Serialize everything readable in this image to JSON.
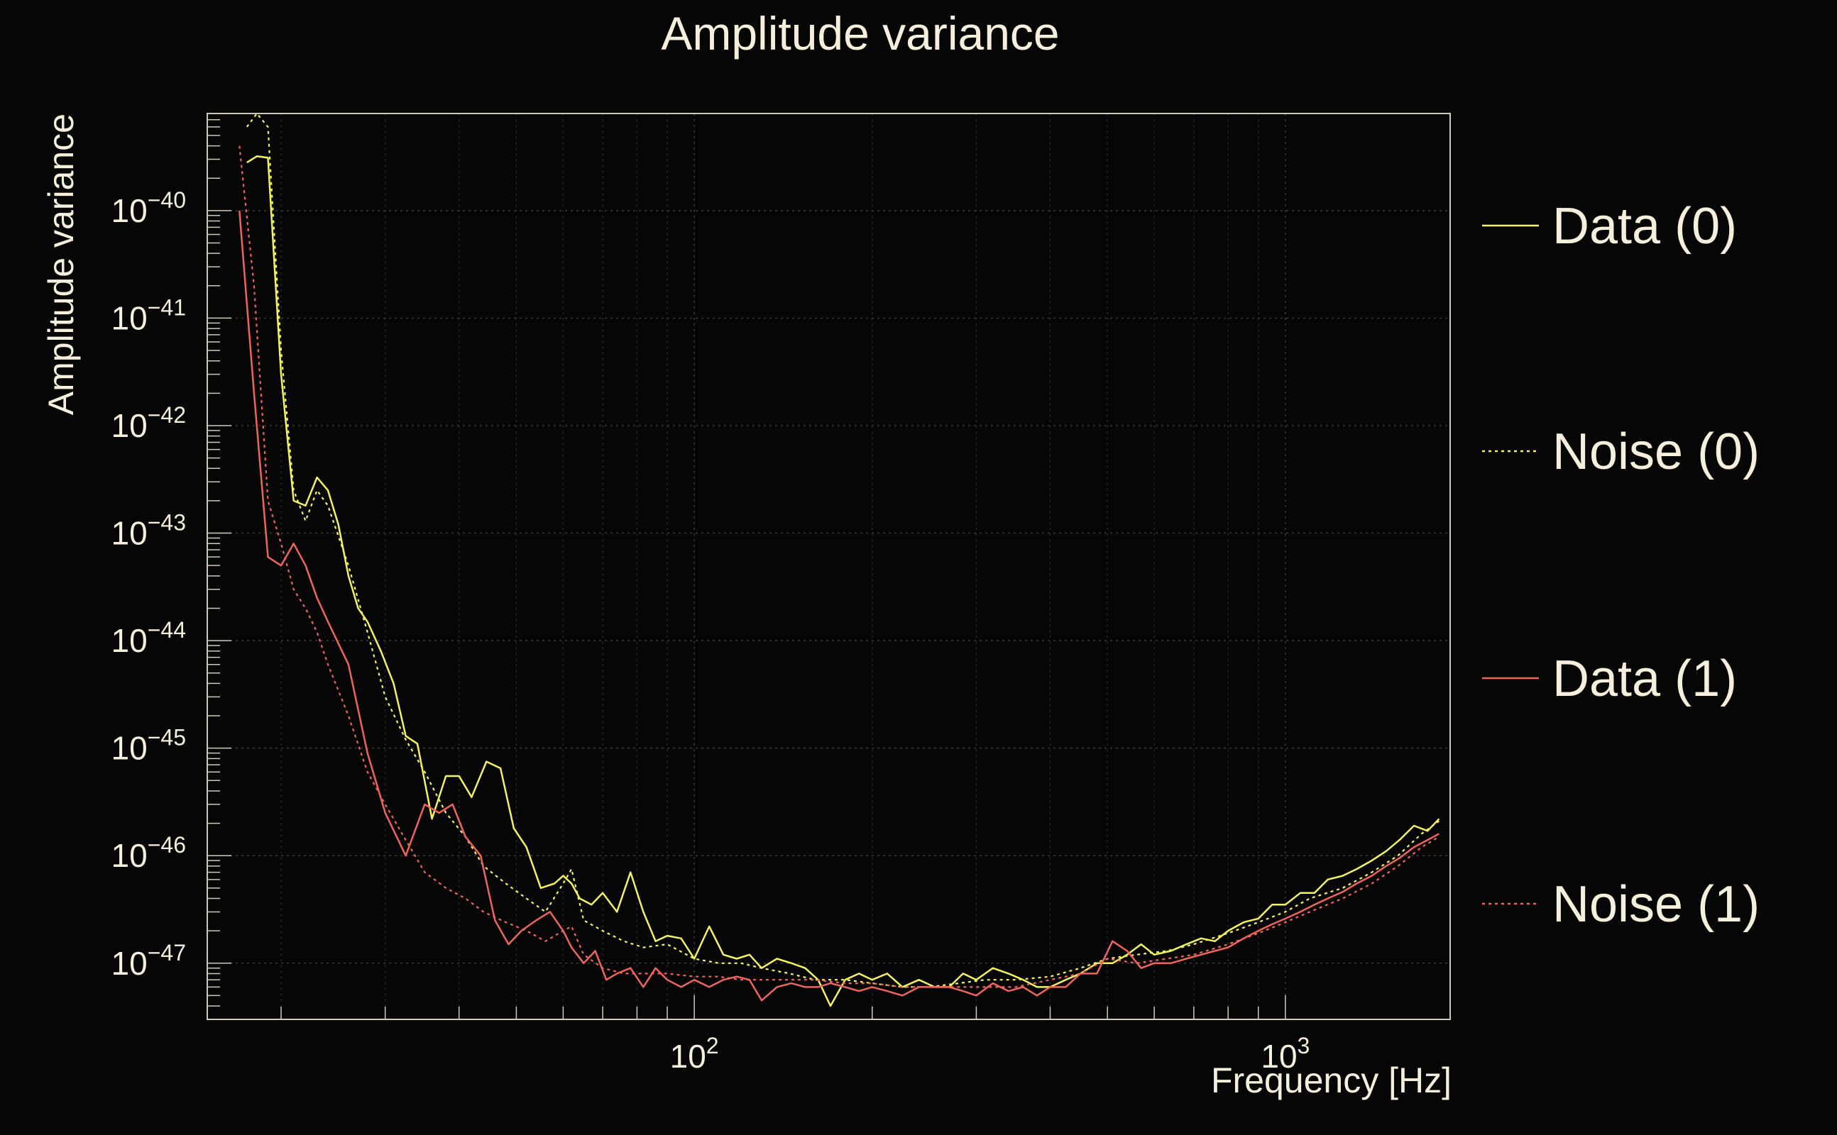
{
  "chart_data": {
    "type": "line",
    "title": "Amplitude variance",
    "xlabel": "Frequency [Hz]",
    "ylabel": "Amplitude variance",
    "x_scale": "log",
    "y_scale": "log",
    "xlim": [
      15,
      1900
    ],
    "ylim": [
      3e-48,
      8e-40
    ],
    "grid": true,
    "legend_position": "right",
    "x_ticks": [
      {
        "value": 100,
        "base": "10",
        "exp": "2"
      },
      {
        "value": 1000,
        "base": "10",
        "exp": "3"
      }
    ],
    "y_ticks": [
      {
        "value": 1e-40,
        "base": "10",
        "exp": "−40"
      },
      {
        "value": 1e-41,
        "base": "10",
        "exp": "−41"
      },
      {
        "value": 1e-42,
        "base": "10",
        "exp": "−42"
      },
      {
        "value": 1e-43,
        "base": "10",
        "exp": "−43"
      },
      {
        "value": 1e-44,
        "base": "10",
        "exp": "−44"
      },
      {
        "value": 1e-45,
        "base": "10",
        "exp": "−45"
      },
      {
        "value": 1e-46,
        "base": "10",
        "exp": "−46"
      },
      {
        "value": 1e-47,
        "base": "10",
        "exp": "−47"
      }
    ],
    "series": [
      {
        "name": "Data (0)",
        "color": "#f3f260",
        "style": "solid",
        "x": [
          17.5,
          18.2,
          19,
          20,
          21,
          22,
          23,
          24,
          25,
          26,
          27,
          28,
          29.5,
          31,
          32.5,
          34,
          36,
          38,
          40,
          42,
          44.5,
          47,
          49.5,
          52,
          55,
          58,
          60,
          62,
          64,
          67,
          70,
          74,
          78,
          82,
          86,
          90,
          95,
          100,
          106,
          112,
          118,
          124,
          130,
          138,
          146,
          154,
          162,
          170,
          180,
          190,
          200,
          212,
          225,
          240,
          255,
          270,
          285,
          300,
          320,
          340,
          360,
          380,
          400,
          425,
          450,
          480,
          510,
          540,
          570,
          600,
          640,
          680,
          720,
          760,
          800,
          850,
          900,
          950,
          1000,
          1060,
          1120,
          1180,
          1250,
          1320,
          1400,
          1480,
          1560,
          1650,
          1740,
          1820
        ],
        "y": [
          2.8e-40,
          3.2e-40,
          3.1e-40,
          3e-42,
          2e-43,
          1.8e-43,
          3.3e-43,
          2.5e-43,
          1.2e-43,
          4e-44,
          2e-44,
          1.5e-44,
          8e-45,
          4e-45,
          1.3e-45,
          1.1e-45,
          2.2e-46,
          5.5e-46,
          5.5e-46,
          3.5e-46,
          7.5e-46,
          6.5e-46,
          1.8e-46,
          1.2e-46,
          5e-47,
          5.5e-47,
          6.5e-47,
          5.5e-47,
          4e-47,
          3.5e-47,
          4.5e-47,
          3e-47,
          7e-47,
          3e-47,
          1.6e-47,
          1.8e-47,
          1.7e-47,
          1.1e-47,
          2.2e-47,
          1.2e-47,
          1.1e-47,
          1.2e-47,
          9e-48,
          1.1e-47,
          1e-47,
          9e-48,
          7e-48,
          4e-48,
          7e-48,
          8e-48,
          7e-48,
          8e-48,
          6e-48,
          7e-48,
          6e-48,
          6e-48,
          8e-48,
          7e-48,
          9e-48,
          8e-48,
          7e-48,
          6e-48,
          6e-48,
          7e-48,
          8e-48,
          1e-47,
          1e-47,
          1.2e-47,
          1.5e-47,
          1.2e-47,
          1.3e-47,
          1.5e-47,
          1.7e-47,
          1.6e-47,
          2e-47,
          2.4e-47,
          2.6e-47,
          3.5e-47,
          3.5e-47,
          4.5e-47,
          4.5e-47,
          6e-47,
          6.5e-47,
          7.5e-47,
          9e-47,
          1.1e-46,
          1.4e-46,
          1.9e-46,
          1.7e-46,
          2.2e-46
        ],
        "note_x_units": "Hz"
      },
      {
        "name": "Noise (0)",
        "color": "#f3f260",
        "style": "dotted",
        "x": [
          17.5,
          18.2,
          19,
          20,
          21,
          22,
          23,
          24,
          26,
          28,
          30,
          32.5,
          35,
          38,
          41,
          44,
          48,
          52,
          56,
          60,
          62,
          65,
          70,
          76,
          82,
          90,
          100,
          110,
          120,
          130,
          145,
          160,
          180,
          200,
          225,
          250,
          280,
          310,
          350,
          400,
          450,
          500,
          560,
          630,
          700,
          800,
          900,
          1000,
          1100,
          1250,
          1400,
          1550,
          1700,
          1820
        ],
        "y": [
          6e-40,
          8e-40,
          6e-40,
          5e-42,
          2.5e-43,
          1.3e-43,
          2.5e-43,
          1.8e-43,
          5e-44,
          1.2e-44,
          3e-45,
          1.2e-45,
          6e-46,
          2.5e-46,
          1.5e-46,
          8e-47,
          5.5e-47,
          4e-47,
          3e-47,
          5.5e-47,
          7.5e-47,
          2.5e-47,
          2e-47,
          1.6e-47,
          1.4e-47,
          1.5e-47,
          1.1e-47,
          1e-47,
          1e-47,
          9e-48,
          8e-48,
          7e-48,
          7e-48,
          6.5e-48,
          6e-48,
          6e-48,
          6.5e-48,
          7e-48,
          7e-48,
          7.5e-48,
          9e-48,
          1.1e-47,
          1.2e-47,
          1.3e-47,
          1.5e-47,
          1.9e-47,
          2.4e-47,
          3e-47,
          4e-47,
          5e-47,
          7e-47,
          1e-46,
          1.6e-46,
          2.1e-46
        ]
      },
      {
        "name": "Data (1)",
        "color": "#f0645e",
        "style": "solid",
        "x": [
          17,
          18,
          19,
          20,
          21,
          22,
          23,
          24,
          26,
          28,
          30,
          32.5,
          35,
          37,
          39,
          41,
          43.5,
          46,
          48.5,
          51,
          54,
          57,
          60,
          62,
          65,
          68,
          71,
          74,
          78,
          82,
          86,
          90,
          95,
          100,
          106,
          112,
          118,
          124,
          130,
          138,
          146,
          154,
          162,
          170,
          180,
          190,
          200,
          212,
          225,
          240,
          255,
          270,
          285,
          300,
          320,
          340,
          360,
          380,
          400,
          425,
          450,
          480,
          510,
          540,
          570,
          600,
          640,
          680,
          720,
          760,
          800,
          850,
          900,
          950,
          1000,
          1060,
          1120,
          1180,
          1250,
          1320,
          1400,
          1480,
          1560,
          1650,
          1740,
          1820
        ],
        "y": [
          1e-40,
          2e-42,
          6e-44,
          5e-44,
          8e-44,
          5e-44,
          2.5e-44,
          1.5e-44,
          6e-45,
          9e-46,
          2.5e-46,
          1e-46,
          3e-46,
          2.5e-46,
          3e-46,
          1.5e-46,
          1e-46,
          2.5e-47,
          1.5e-47,
          2e-47,
          2.5e-47,
          3e-47,
          2e-47,
          1.4e-47,
          1e-47,
          1.3e-47,
          7e-48,
          8e-48,
          9e-48,
          6e-48,
          9e-48,
          7e-48,
          6e-48,
          7e-48,
          6e-48,
          7e-48,
          7.5e-48,
          7e-48,
          4.5e-48,
          6e-48,
          6.5e-48,
          6e-48,
          6e-48,
          6.5e-48,
          6e-48,
          5.5e-48,
          6e-48,
          5.5e-48,
          5e-48,
          6e-48,
          6e-48,
          6e-48,
          5.5e-48,
          5e-48,
          6.5e-48,
          5.5e-48,
          6e-48,
          5e-48,
          6e-48,
          6e-48,
          8e-48,
          8e-48,
          1.6e-47,
          1.3e-47,
          9e-48,
          1e-47,
          1e-47,
          1.1e-47,
          1.2e-47,
          1.3e-47,
          1.4e-47,
          1.7e-47,
          2e-47,
          2.3e-47,
          2.6e-47,
          3e-47,
          3.5e-47,
          4e-47,
          4.6e-47,
          5.5e-47,
          6.5e-47,
          8e-47,
          9.5e-47,
          1.2e-46,
          1.4e-46,
          1.6e-46
        ]
      },
      {
        "name": "Noise (1)",
        "color": "#f0645e",
        "style": "dotted",
        "x": [
          17,
          18,
          19,
          20,
          21,
          22,
          23,
          24,
          26,
          28,
          30,
          32.5,
          35,
          38,
          41,
          44,
          48,
          52,
          56,
          60,
          62,
          65,
          70,
          76,
          82,
          90,
          100,
          110,
          120,
          130,
          145,
          160,
          180,
          200,
          225,
          250,
          280,
          310,
          350,
          400,
          450,
          500,
          560,
          630,
          700,
          800,
          900,
          1000,
          1100,
          1250,
          1400,
          1550,
          1700,
          1820
        ],
        "y": [
          4e-40,
          2e-41,
          2e-43,
          8e-44,
          3e-44,
          2e-44,
          1.2e-44,
          6e-45,
          2e-45,
          6e-46,
          3e-46,
          1.4e-46,
          7e-47,
          5e-47,
          4e-47,
          3e-47,
          2.4e-47,
          2e-47,
          1.6e-47,
          2e-47,
          2.2e-47,
          1.2e-47,
          9e-48,
          8e-48,
          8e-48,
          8e-48,
          7.5e-48,
          7.5e-48,
          7e-48,
          7e-48,
          7e-48,
          7e-48,
          6.5e-48,
          6.5e-48,
          6e-48,
          6e-48,
          6e-48,
          6e-48,
          6e-48,
          7e-48,
          8e-48,
          1.1e-47,
          1e-47,
          1.1e-47,
          1.2e-47,
          1.5e-47,
          1.9e-47,
          2.4e-47,
          3e-47,
          4e-47,
          5.5e-47,
          8e-47,
          1.2e-46,
          1.5e-46
        ]
      }
    ]
  }
}
